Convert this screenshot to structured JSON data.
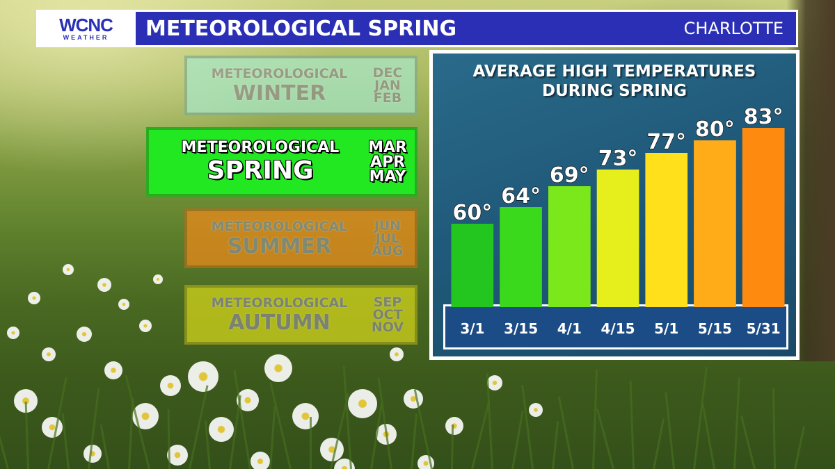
{
  "header": {
    "logo_main": "WCNC",
    "logo_sub": "WEATHER",
    "title": "METEOROLOGICAL SPRING",
    "city": "CHARLOTTE"
  },
  "seasons": [
    {
      "word1": "METEOROLOGICAL",
      "word2": "WINTER",
      "months": [
        "DEC",
        "JAN",
        "FEB"
      ],
      "color": "#a8e8c8",
      "active": false
    },
    {
      "word1": "METEOROLOGICAL",
      "word2": "SPRING",
      "months": [
        "MAR",
        "APR",
        "MAY"
      ],
      "color": "#22e822",
      "active": true
    },
    {
      "word1": "METEOROLOGICAL",
      "word2": "SUMMER",
      "months": [
        "JUN",
        "JUL",
        "AUG"
      ],
      "color": "#f08a1a",
      "active": false
    },
    {
      "word1": "METEOROLOGICAL",
      "word2": "AUTUMN",
      "months": [
        "SEP",
        "OCT",
        "NOV"
      ],
      "color": "#d8d81a",
      "active": false
    }
  ],
  "chart_data": {
    "type": "bar",
    "title": "AVERAGE HIGH TEMPERATURES DURING SPRING",
    "title_lines": [
      "AVERAGE HIGH TEMPERATURES",
      "DURING SPRING"
    ],
    "categories": [
      "3/1",
      "3/15",
      "4/1",
      "4/15",
      "5/1",
      "5/15",
      "5/31"
    ],
    "values": [
      60,
      64,
      69,
      73,
      77,
      80,
      83
    ],
    "value_labels": [
      "60°",
      "64°",
      "69°",
      "73°",
      "77°",
      "80°",
      "83°"
    ],
    "bar_colors": [
      "#22c61e",
      "#3ad91c",
      "#7ae81a",
      "#e6ee1c",
      "#ffe01a",
      "#ffac18",
      "#ff8a10"
    ],
    "ylim": [
      40,
      85
    ],
    "grid": false,
    "legend": "none"
  }
}
